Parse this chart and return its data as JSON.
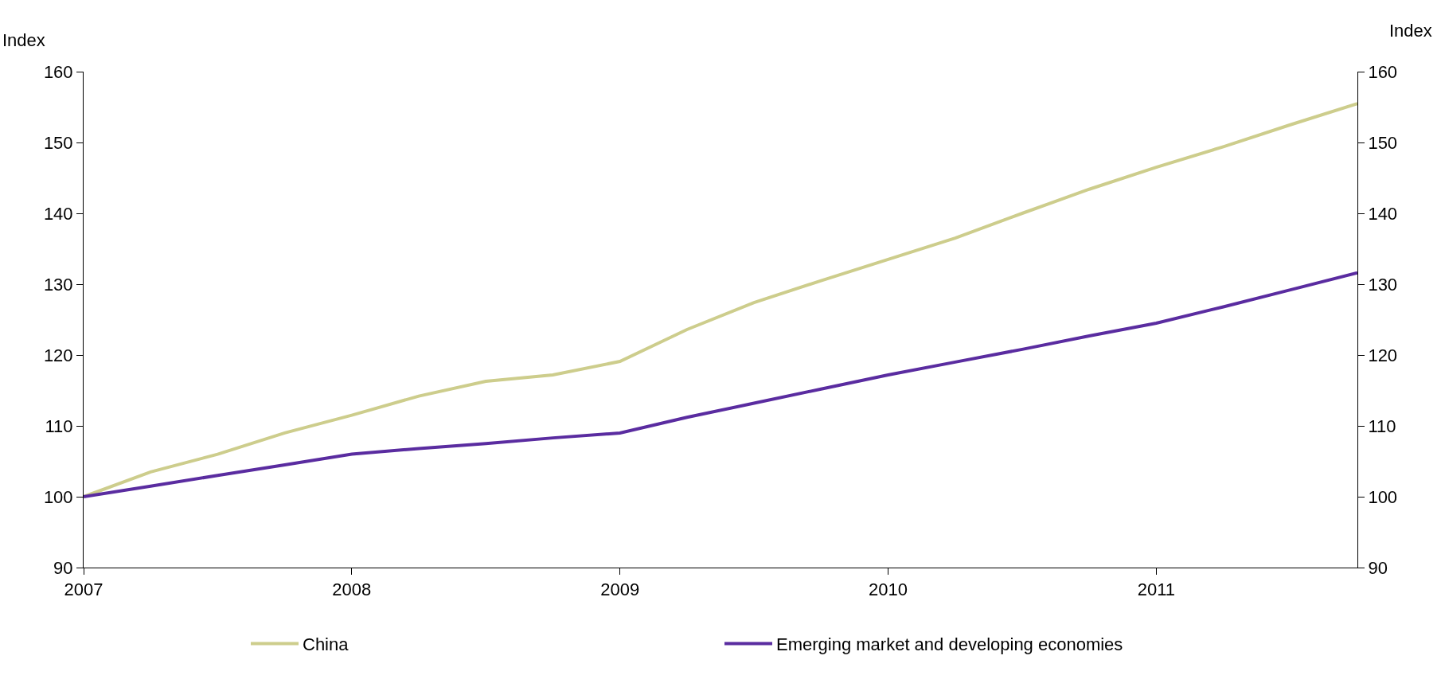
{
  "chart_data": {
    "type": "line",
    "ylabel": "Index",
    "y2label": "Index",
    "x": [
      2007,
      2007.25,
      2007.5,
      2007.75,
      2008,
      2008.25,
      2008.5,
      2008.75,
      2009,
      2009.25,
      2009.5,
      2009.75,
      2010,
      2010.25,
      2010.5,
      2010.75,
      2011,
      2011.25,
      2011.5,
      2011.75
    ],
    "series": [
      {
        "name": "China",
        "color": "#cdcd8c",
        "values": [
          100,
          103.5,
          106,
          109,
          111.5,
          114.2,
          116.3,
          117.2,
          119.1,
          123.6,
          127.4,
          130.5,
          133.5,
          136.5,
          140,
          143.4,
          146.5,
          149.4,
          152.5,
          155.5
        ]
      },
      {
        "name": "Emerging market and developing economies",
        "color": "#5a2ca0",
        "values": [
          100,
          101.5,
          103,
          104.5,
          106,
          106.8,
          107.5,
          108.3,
          109,
          111.2,
          113.2,
          115.2,
          117.2,
          119,
          120.8,
          122.7,
          124.5,
          126.8,
          129.2,
          131.6
        ]
      }
    ],
    "xlim": [
      2007,
      2011.75
    ],
    "xticks": [
      2007,
      2008,
      2009,
      2010,
      2011
    ],
    "ylim": [
      90,
      160
    ],
    "yticks": [
      90,
      100,
      110,
      120,
      130,
      140,
      150,
      160
    ],
    "y2lim": [
      90,
      160
    ],
    "y2ticks": [
      90,
      100,
      110,
      120,
      130,
      140,
      150,
      160
    ],
    "grid": false,
    "legend": "bottom",
    "marker": "none",
    "line_style": "solid"
  }
}
